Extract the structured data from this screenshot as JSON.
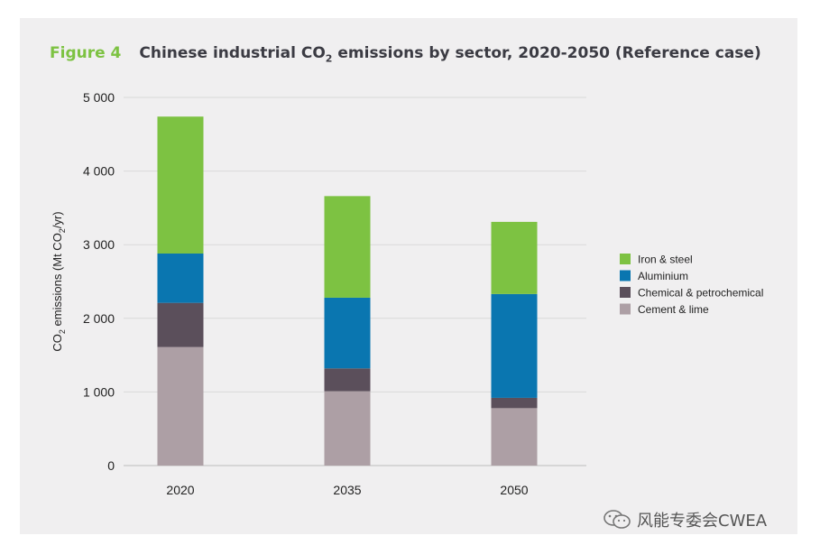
{
  "header": {
    "figure_label": "Figure 4",
    "title_prefix": "Chinese industrial CO",
    "title_sub": "2",
    "title_suffix": " emissions by sector, 2020-2050 (Reference case)"
  },
  "chart_data": {
    "type": "bar",
    "stacked": true,
    "title": "Chinese industrial CO2 emissions by sector, 2020-2050 (Reference case)",
    "xlabel": "",
    "ylabel": "CO2 emissions (Mt CO2/yr)",
    "ylim": [
      0,
      5000
    ],
    "yticks": [
      0,
      1000,
      2000,
      3000,
      4000,
      5000
    ],
    "ytick_labels": [
      "0",
      "1 000",
      "2 000",
      "3 000",
      "4 000",
      "5 000"
    ],
    "categories": [
      "2020",
      "2035",
      "2050"
    ],
    "legend_position": "right",
    "grid": true,
    "series": [
      {
        "name": "Cement & lime",
        "color": "#ad9fa5",
        "values": [
          1610,
          1010,
          780
        ]
      },
      {
        "name": "Chemical & petrochemical",
        "color": "#5b4f5b",
        "values": [
          600,
          310,
          140
        ]
      },
      {
        "name": "Aluminium",
        "color": "#0a76b0",
        "values": [
          670,
          960,
          1410
        ]
      },
      {
        "name": "Iron & steel",
        "color": "#7dc242",
        "values": [
          1860,
          1380,
          980
        ]
      }
    ],
    "legend_order": [
      "Iron & steel",
      "Aluminium",
      "Chemical & petrochemical",
      "Cement & lime"
    ]
  },
  "watermark": {
    "text": "风能专委会CWEA",
    "icon": "wechat-icon"
  }
}
